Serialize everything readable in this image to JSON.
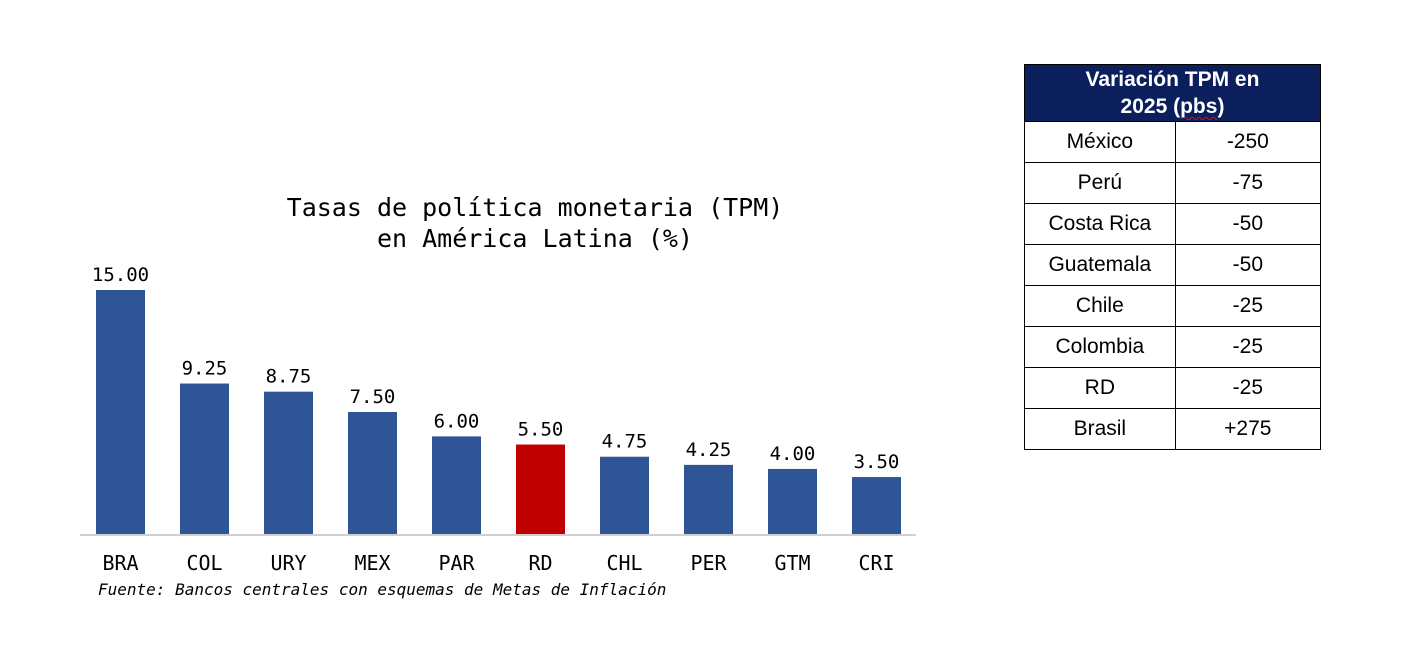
{
  "chart_data": {
    "type": "bar",
    "title": "Tasas de política monetaria (TPM)\nen América Latina (%)",
    "categories": [
      "BRA",
      "COL",
      "URY",
      "MEX",
      "PAR",
      "RD",
      "CHL",
      "PER",
      "GTM",
      "CRI"
    ],
    "values": [
      15.0,
      9.25,
      8.75,
      7.5,
      6.0,
      5.5,
      4.75,
      4.25,
      4.0,
      3.5
    ],
    "value_labels": [
      "15.00",
      "9.25",
      "8.75",
      "7.50",
      "6.00",
      "5.50",
      "4.75",
      "4.25",
      "4.00",
      "3.50"
    ],
    "highlight_category": "RD",
    "colors": {
      "default": "#2f5597",
      "highlight": "#c00000",
      "axis": "#d0d0d0"
    },
    "ylim": [
      0,
      16
    ],
    "grid": false,
    "legend": "none"
  },
  "source_note": "Fuente: Bancos centrales con esquemas de Metas de Inflación",
  "table": {
    "header_line1": "Variación TPM en",
    "header_line2_a": "2025 (",
    "header_line2_b": "pbs",
    "header_line2_c": ")",
    "header_color": "#0b1f5c",
    "rows": [
      {
        "country": "México",
        "value": "-250"
      },
      {
        "country": "Perú",
        "value": "-75"
      },
      {
        "country": "Costa Rica",
        "value": "-50"
      },
      {
        "country": "Guatemala",
        "value": "-50"
      },
      {
        "country": "Chile",
        "value": "-25"
      },
      {
        "country": "Colombia",
        "value": "-25"
      },
      {
        "country": "RD",
        "value": "-25"
      },
      {
        "country": "Brasil",
        "value": "+275"
      }
    ]
  }
}
